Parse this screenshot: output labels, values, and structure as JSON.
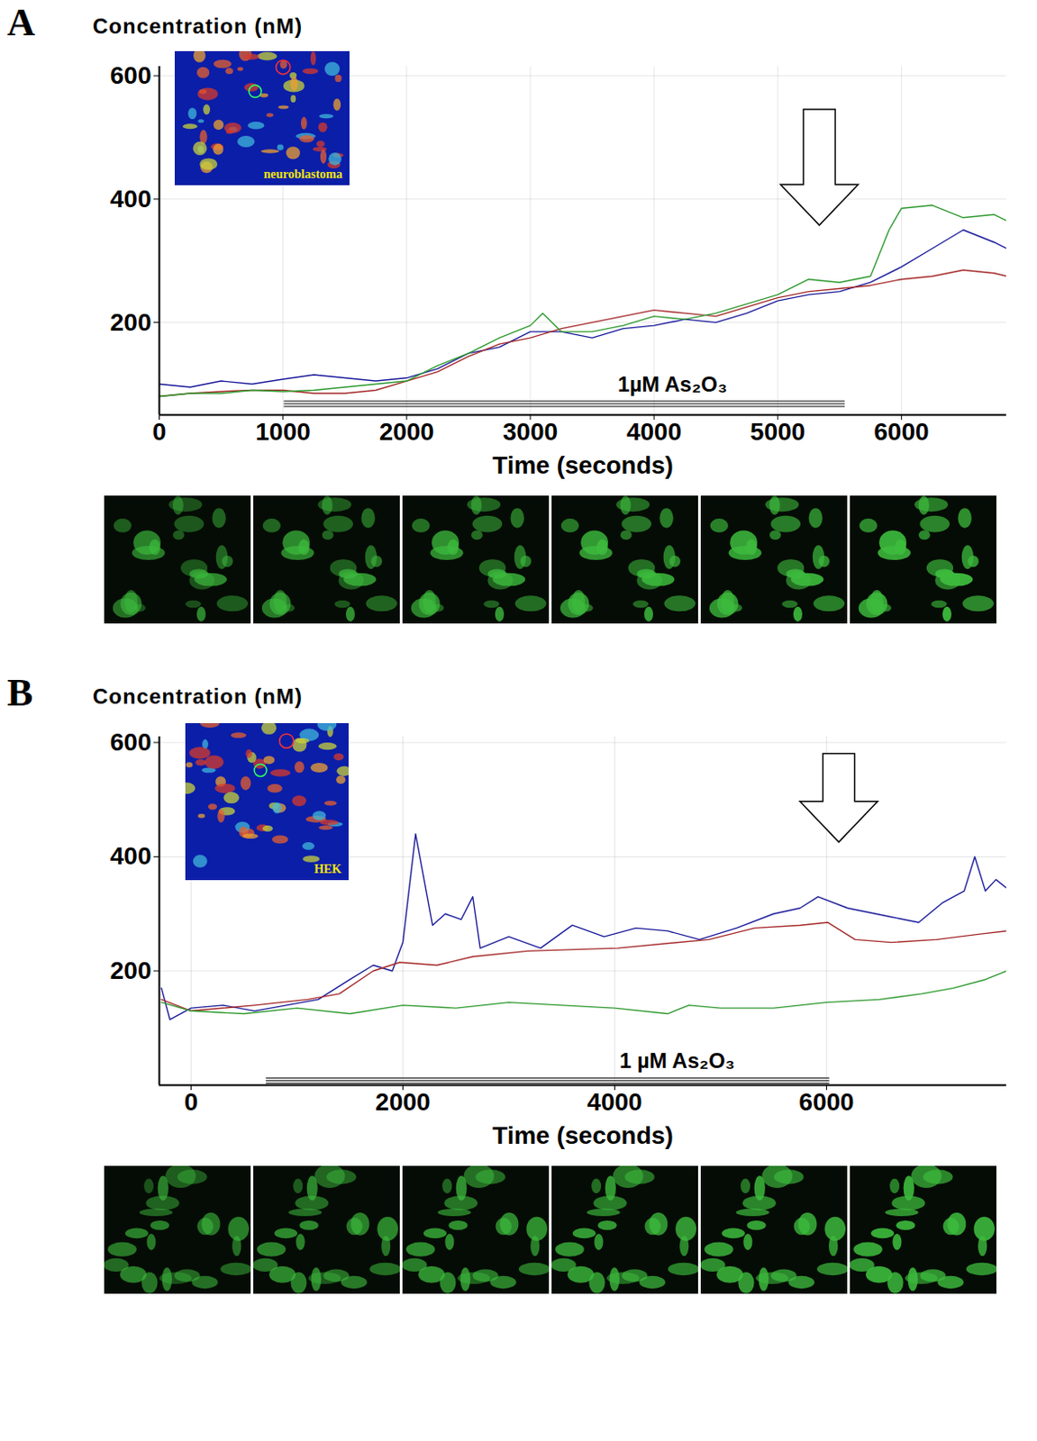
{
  "chart_data": [
    {
      "type": "line",
      "panel": "A",
      "y_label": "Concentration (nM)",
      "x_label": "Time (seconds)",
      "inset_label": "neuroblastoma",
      "xlim": [
        0,
        6850
      ],
      "xticks": [
        0,
        1000,
        2000,
        3000,
        4000,
        5000,
        6000
      ],
      "ylim": [
        50,
        615
      ],
      "yticks": [
        200,
        400,
        600
      ],
      "grid": true,
      "annotations": [
        {
          "text": "1µM As₂O₃",
          "x": 4150,
          "y": 68,
          "x1": 1010,
          "x2": 5545
        }
      ],
      "arrows": [
        {
          "x": 5340,
          "y1": 545,
          "y2": 357
        }
      ],
      "series": [
        {
          "color": "#1c1c9c",
          "x": [
            0,
            250,
            500,
            750,
            1000,
            1250,
            1500,
            1750,
            2000,
            2250,
            2500,
            2750,
            3000,
            3250,
            3500,
            3750,
            4000,
            4250,
            4500,
            4750,
            5000,
            5250,
            5500,
            5750,
            6000,
            6250,
            6500,
            6750,
            6850
          ],
          "values": [
            100,
            95,
            105,
            100,
            108,
            115,
            110,
            105,
            110,
            125,
            150,
            160,
            185,
            185,
            175,
            190,
            195,
            205,
            200,
            215,
            235,
            245,
            250,
            265,
            290,
            320,
            350,
            330,
            320
          ]
        },
        {
          "color": "#a52a2a",
          "x": [
            0,
            250,
            500,
            750,
            1000,
            1250,
            1500,
            1750,
            2000,
            2250,
            2500,
            2750,
            3000,
            3250,
            3500,
            3750,
            4000,
            4250,
            4500,
            4750,
            5000,
            5250,
            5500,
            5750,
            6000,
            6250,
            6500,
            6750,
            6850
          ],
          "values": [
            80,
            85,
            88,
            90,
            90,
            85,
            85,
            90,
            105,
            120,
            145,
            165,
            175,
            190,
            200,
            210,
            220,
            215,
            210,
            225,
            240,
            250,
            255,
            260,
            270,
            275,
            285,
            280,
            275
          ]
        },
        {
          "color": "#2f9a2f",
          "x": [
            0,
            250,
            500,
            750,
            1000,
            1250,
            1500,
            1750,
            2000,
            2250,
            2500,
            2750,
            3000,
            3100,
            3250,
            3500,
            3750,
            4000,
            4250,
            4500,
            4750,
            5000,
            5250,
            5500,
            5750,
            5900,
            6000,
            6250,
            6500,
            6750,
            6850
          ],
          "values": [
            80,
            85,
            85,
            90,
            88,
            90,
            95,
            100,
            105,
            130,
            150,
            175,
            195,
            215,
            185,
            185,
            195,
            210,
            205,
            215,
            230,
            245,
            270,
            265,
            275,
            350,
            385,
            390,
            370,
            375,
            365
          ]
        }
      ]
    },
    {
      "type": "line",
      "panel": "B",
      "y_label": "Concentration (nM)",
      "x_label": "Time (seconds)",
      "inset_label": "HEK",
      "xlim": [
        -300,
        7700
      ],
      "xticks": [
        0,
        2000,
        4000,
        6000
      ],
      "ylim": [
        0,
        610
      ],
      "yticks": [
        200,
        400,
        600
      ],
      "grid": true,
      "annotations": [
        {
          "text": "1 µM As₂O₃",
          "x": 4590,
          "y": 8,
          "x1": 710,
          "x2": 6030
        }
      ],
      "arrows": [
        {
          "x": 6120,
          "y1": 580,
          "y2": 425
        }
      ],
      "series": [
        {
          "color": "#1c1c9c",
          "x": [
            -280,
            -200,
            0,
            300,
            600,
            900,
            1200,
            1500,
            1720,
            1900,
            2000,
            2120,
            2200,
            2280,
            2400,
            2550,
            2660,
            2730,
            3000,
            3300,
            3600,
            3900,
            4200,
            4500,
            4800,
            5150,
            5500,
            5750,
            5920,
            6200,
            6600,
            6870,
            7100,
            7300,
            7400,
            7500,
            7600,
            7700
          ],
          "values": [
            170,
            115,
            135,
            140,
            130,
            140,
            150,
            185,
            210,
            200,
            250,
            440,
            360,
            280,
            300,
            290,
            330,
            240,
            260,
            240,
            280,
            260,
            275,
            270,
            255,
            275,
            300,
            310,
            330,
            310,
            295,
            285,
            320,
            340,
            400,
            340,
            360,
            345
          ]
        },
        {
          "color": "#a52a2a",
          "x": [
            -280,
            0,
            600,
            1100,
            1400,
            1720,
            1970,
            2320,
            2660,
            3180,
            4030,
            4890,
            5320,
            5750,
            6010,
            6270,
            6610,
            7040,
            7470,
            7700
          ],
          "values": [
            150,
            130,
            140,
            150,
            160,
            200,
            215,
            210,
            225,
            235,
            240,
            255,
            275,
            280,
            285,
            255,
            250,
            255,
            265,
            270
          ]
        },
        {
          "color": "#2f9a2f",
          "x": [
            -280,
            0,
            500,
            1000,
            1500,
            2000,
            2500,
            3000,
            3500,
            4000,
            4500,
            4700,
            5000,
            5500,
            6000,
            6500,
            6900,
            7200,
            7500,
            7700
          ],
          "values": [
            145,
            130,
            125,
            135,
            125,
            140,
            135,
            145,
            140,
            135,
            125,
            140,
            135,
            135,
            145,
            150,
            160,
            170,
            185,
            200
          ]
        }
      ]
    }
  ]
}
